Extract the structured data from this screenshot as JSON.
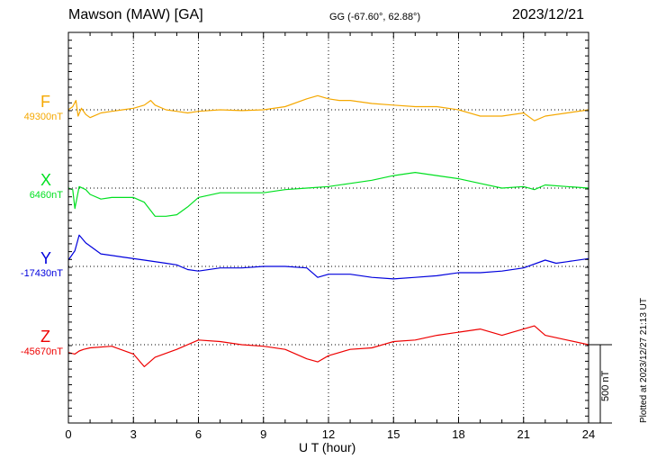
{
  "header": {
    "station": "Mawson (MAW)  [GA]",
    "coords": "GG (-67.60°,  62.88°)",
    "date": "2023/12/21"
  },
  "components": [
    {
      "name": "F",
      "baseline": "49300nT",
      "color": "#f5a800"
    },
    {
      "name": "X",
      "baseline": "6460nT",
      "color": "#00e020"
    },
    {
      "name": "Y",
      "baseline": "-17430nT",
      "color": "#0000dd"
    },
    {
      "name": "Z",
      "baseline": "-45670nT",
      "color": "#ee0000"
    }
  ],
  "footer": {
    "xlabel": "U T (hour)",
    "scale_label": "500 nT",
    "plotted": "Plotted at 2023/12/27 21:13 UT"
  },
  "chart_data": {
    "type": "line",
    "x_unit": "hour UT",
    "xlim": [
      0,
      24
    ],
    "xticks": [
      0,
      3,
      6,
      9,
      12,
      15,
      18,
      21,
      24
    ],
    "scale_bar_nT": 500,
    "series": [
      {
        "name": "F",
        "baseline_nT": 49300,
        "points": [
          [
            0,
            0
          ],
          [
            0.2,
            20
          ],
          [
            0.35,
            60
          ],
          [
            0.45,
            -40
          ],
          [
            0.6,
            10
          ],
          [
            0.8,
            -30
          ],
          [
            1.0,
            -50
          ],
          [
            1.5,
            -20
          ],
          [
            2.0,
            -10
          ],
          [
            2.5,
            0
          ],
          [
            3.0,
            10
          ],
          [
            3.5,
            30
          ],
          [
            3.8,
            60
          ],
          [
            4.0,
            30
          ],
          [
            4.5,
            0
          ],
          [
            5.0,
            -10
          ],
          [
            5.5,
            -20
          ],
          [
            6.0,
            -10
          ],
          [
            7.0,
            0
          ],
          [
            8.0,
            -5
          ],
          [
            9.0,
            0
          ],
          [
            10.0,
            20
          ],
          [
            11.0,
            70
          ],
          [
            11.5,
            90
          ],
          [
            12.0,
            70
          ],
          [
            12.5,
            60
          ],
          [
            13.0,
            60
          ],
          [
            14.0,
            40
          ],
          [
            15.0,
            30
          ],
          [
            16.0,
            20
          ],
          [
            17.0,
            20
          ],
          [
            18.0,
            0
          ],
          [
            19.0,
            -40
          ],
          [
            20.0,
            -40
          ],
          [
            21.0,
            -20
          ],
          [
            21.5,
            -70
          ],
          [
            22.0,
            -40
          ],
          [
            23.0,
            -20
          ],
          [
            24.0,
            0
          ]
        ]
      },
      {
        "name": "X",
        "baseline_nT": 6460,
        "points": [
          [
            0,
            0
          ],
          [
            0.2,
            -10
          ],
          [
            0.3,
            -130
          ],
          [
            0.5,
            10
          ],
          [
            0.8,
            -10
          ],
          [
            1.0,
            -40
          ],
          [
            1.5,
            -70
          ],
          [
            2.0,
            -60
          ],
          [
            3.0,
            -60
          ],
          [
            3.5,
            -90
          ],
          [
            4.0,
            -180
          ],
          [
            4.5,
            -180
          ],
          [
            5.0,
            -170
          ],
          [
            5.5,
            -120
          ],
          [
            6.0,
            -60
          ],
          [
            7.0,
            -30
          ],
          [
            8.0,
            -30
          ],
          [
            9.0,
            -30
          ],
          [
            10.0,
            -10
          ],
          [
            11.0,
            0
          ],
          [
            12.0,
            10
          ],
          [
            13.0,
            30
          ],
          [
            14.0,
            50
          ],
          [
            15.0,
            80
          ],
          [
            16.0,
            100
          ],
          [
            17.0,
            80
          ],
          [
            18.0,
            60
          ],
          [
            19.0,
            30
          ],
          [
            20.0,
            0
          ],
          [
            21.0,
            10
          ],
          [
            21.5,
            -10
          ],
          [
            22.0,
            20
          ],
          [
            23.0,
            10
          ],
          [
            24.0,
            0
          ]
        ]
      },
      {
        "name": "Y",
        "baseline_nT": -17430,
        "points": [
          [
            0,
            40
          ],
          [
            0.3,
            100
          ],
          [
            0.5,
            200
          ],
          [
            0.8,
            150
          ],
          [
            1.5,
            80
          ],
          [
            2.5,
            60
          ],
          [
            3.5,
            40
          ],
          [
            4.5,
            20
          ],
          [
            5.0,
            10
          ],
          [
            5.5,
            -20
          ],
          [
            6.0,
            -30
          ],
          [
            7.0,
            -10
          ],
          [
            8.0,
            -10
          ],
          [
            9.0,
            0
          ],
          [
            10.0,
            0
          ],
          [
            11.0,
            -10
          ],
          [
            11.5,
            -70
          ],
          [
            12.0,
            -50
          ],
          [
            13.0,
            -50
          ],
          [
            14.0,
            -70
          ],
          [
            15.0,
            -80
          ],
          [
            16.0,
            -70
          ],
          [
            17.0,
            -60
          ],
          [
            18.0,
            -40
          ],
          [
            19.0,
            -40
          ],
          [
            20.0,
            -30
          ],
          [
            21.0,
            -10
          ],
          [
            22.0,
            40
          ],
          [
            22.5,
            20
          ],
          [
            23.0,
            30
          ],
          [
            24.0,
            50
          ]
        ]
      },
      {
        "name": "Z",
        "baseline_nT": -45670,
        "points": [
          [
            0,
            -50
          ],
          [
            0.3,
            -60
          ],
          [
            0.5,
            -40
          ],
          [
            0.7,
            -30
          ],
          [
            1.0,
            -20
          ],
          [
            2.0,
            -10
          ],
          [
            3.0,
            -60
          ],
          [
            3.5,
            -140
          ],
          [
            4.0,
            -80
          ],
          [
            5.0,
            -30
          ],
          [
            6.0,
            30
          ],
          [
            7.0,
            20
          ],
          [
            8.0,
            0
          ],
          [
            9.0,
            -10
          ],
          [
            10.0,
            -30
          ],
          [
            11.0,
            -90
          ],
          [
            11.5,
            -110
          ],
          [
            12.0,
            -70
          ],
          [
            13.0,
            -30
          ],
          [
            14.0,
            -20
          ],
          [
            15.0,
            20
          ],
          [
            16.0,
            30
          ],
          [
            17.0,
            60
          ],
          [
            18.0,
            80
          ],
          [
            19.0,
            100
          ],
          [
            20.0,
            60
          ],
          [
            21.0,
            100
          ],
          [
            21.5,
            120
          ],
          [
            22.0,
            60
          ],
          [
            23.0,
            30
          ],
          [
            24.0,
            0
          ]
        ]
      }
    ]
  }
}
